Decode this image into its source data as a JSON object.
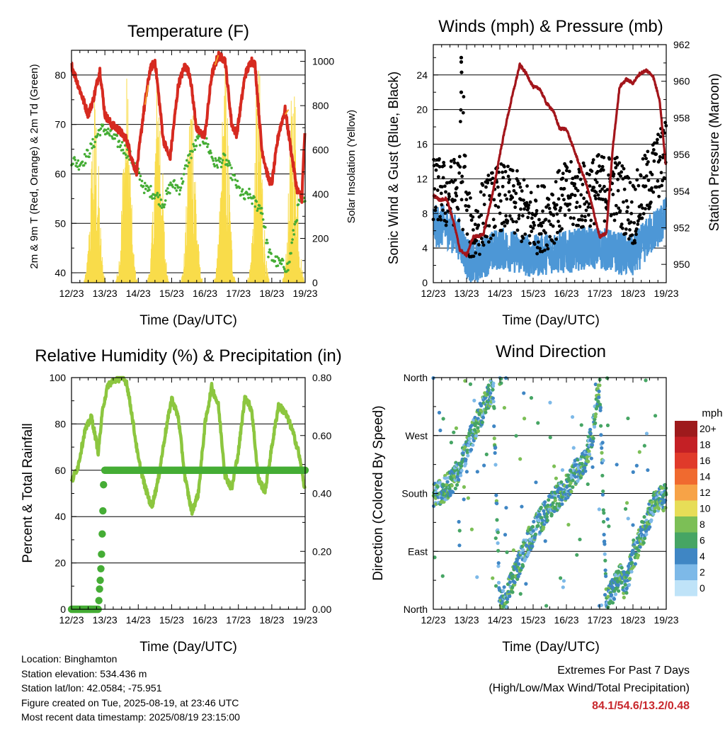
{
  "panels": {
    "temperature": {
      "title": "Temperature (F)",
      "xlabel": "Time (Day/UTC)",
      "ylabel_left": "2m & 9m T (Red, Orange) & 2m Td (Green)",
      "ylabel_right": "Solar Insolation (Yellow)"
    },
    "winds": {
      "title": "Winds (mph) & Pressure (mb)",
      "xlabel": "Time (Day/UTC)",
      "ylabel_left": "Sonic Wind & Gust (Blue, Black)",
      "ylabel_right": "Station Pressure (Maroon)"
    },
    "humidity": {
      "title": "Relative Humidity (%) & Precipitation (in)",
      "xlabel": "Time (Day/UTC)",
      "ylabel_left": "Percent & Total Rainfall"
    },
    "direction": {
      "title": "Wind Direction",
      "xlabel": "Time (Day/UTC)",
      "ylabel_left": "Direction (Colored By Speed)",
      "legend_title": "mph"
    }
  },
  "info": {
    "location": "Location: Binghamton",
    "elevation": "Station elevation: 534.436 m",
    "latlon": "Station lat/lon: 42.0584; -75.951",
    "created": "Figure created on Tue, 2025-08-19, at 23:46 UTC",
    "recent": "Most recent data timestamp: 2025/08/19 23:15:00"
  },
  "extremes": {
    "line1": "Extremes For Past 7 Days",
    "line2": "(High/Low/Max Wind/Total Precipitation)",
    "values": "84.1/54.6/13.2/0.48"
  },
  "chart_data": [
    {
      "type": "line",
      "title": "Temperature (F)",
      "xlabel": "Time (Day/UTC)",
      "ylabel": "2m & 9m T (Red, Orange) & 2m Td (Green)",
      "y2label": "Solar Insolation (Yellow)",
      "x_ticks": [
        "12/23",
        "13/23",
        "14/23",
        "15/23",
        "16/23",
        "17/23",
        "18/23",
        "19/23"
      ],
      "xlim": [
        12,
        19
      ],
      "ylim": [
        38,
        85
      ],
      "y_ticks": [
        40,
        50,
        60,
        70,
        80
      ],
      "y2lim": [
        0,
        1050
      ],
      "y2_ticks": [
        0,
        200,
        400,
        600,
        800,
        1000
      ],
      "grid": true,
      "series": [
        {
          "color": "#d62a20",
          "x": [
            12.0,
            12.15,
            12.3,
            12.5,
            12.65,
            12.85,
            13.0,
            13.2,
            13.4,
            13.65,
            13.85,
            13.95,
            14.15,
            14.35,
            14.5,
            14.75,
            14.85,
            14.95,
            15.2,
            15.4,
            15.55,
            15.75,
            15.9,
            16.0,
            16.2,
            16.4,
            16.6,
            16.8,
            16.95,
            17.2,
            17.4,
            17.5,
            17.7,
            17.9,
            18.0,
            18.2,
            18.4,
            18.55,
            18.75,
            18.9,
            19.0
          ],
          "y": [
            82,
            79,
            76,
            72,
            75,
            81,
            72,
            70,
            69,
            67,
            62,
            60.5,
            72,
            81,
            83,
            67,
            65,
            63,
            78,
            82,
            80,
            69,
            68,
            68,
            80,
            84,
            83,
            70,
            68,
            80,
            83,
            82,
            65,
            59,
            58,
            68,
            73,
            66,
            57,
            55,
            70
          ]
        },
        {
          "color": "#f59a23",
          "x": [
            14.2,
            14.3,
            14.4,
            16.3,
            16.4,
            18.4,
            18.5
          ],
          "y": [
            74,
            78,
            81,
            82,
            84,
            72,
            73
          ]
        },
        {
          "color": "#45ad35",
          "x": [
            12.0,
            12.2,
            12.4,
            12.65,
            12.85,
            13.0,
            13.3,
            13.6,
            13.8,
            14.0,
            14.2,
            14.5,
            14.75,
            15.0,
            15.25,
            15.5,
            15.8,
            16.0,
            16.3,
            16.6,
            16.8,
            17.0,
            17.2,
            17.3,
            17.5,
            17.7,
            17.9,
            18.0,
            18.2,
            18.5,
            18.7,
            18.85,
            19.0
          ],
          "y": [
            63,
            62,
            63,
            66,
            69,
            69,
            67,
            65,
            63,
            60,
            57,
            56,
            54,
            58,
            57,
            63,
            67,
            67,
            62,
            63,
            60,
            57,
            55,
            56,
            54,
            53,
            44,
            43,
            42,
            41,
            50,
            55,
            54
          ]
        },
        {
          "color": "#f9dc4a",
          "axis": "right",
          "note": "Solar insolation, daily peaks",
          "peak_x": [
            12.7,
            13.65,
            14.6,
            15.6,
            16.6,
            17.6,
            18.65
          ],
          "peak_y": [
            880,
            960,
            1040,
            1000,
            1010,
            1020,
            1000
          ]
        }
      ]
    },
    {
      "type": "scatter",
      "title": "Winds (mph) & Pressure (mb)",
      "xlabel": "Time (Day/UTC)",
      "ylabel": "Sonic Wind & Gust (Blue, Black)",
      "y2label": "Station Pressure (Maroon)",
      "x_ticks": [
        "12/23",
        "13/23",
        "14/23",
        "15/23",
        "16/23",
        "17/23",
        "18/23",
        "19/23"
      ],
      "xlim": [
        12,
        19
      ],
      "ylim": [
        0,
        27.5
      ],
      "y_ticks": [
        0,
        4,
        8,
        12,
        16,
        20,
        24
      ],
      "y2lim": [
        949.0,
        962.0
      ],
      "y2_ticks": [
        950,
        952,
        954,
        956,
        958,
        960,
        962
      ],
      "series": [
        {
          "name": "Sonic Wind",
          "color": "#4d97d6",
          "x": [
            12.0,
            12.4,
            12.8,
            13.0,
            13.2,
            13.5,
            14.0,
            14.5,
            15.0,
            15.5,
            16.0,
            16.5,
            17.0,
            17.5,
            18.0,
            18.5,
            19.0
          ],
          "y": [
            6.5,
            6.5,
            5.0,
            3.0,
            2.0,
            3.0,
            4.0,
            3.5,
            3.0,
            3.5,
            3.5,
            4.0,
            4.0,
            3.5,
            3.0,
            5.5,
            7.5
          ]
        },
        {
          "name": "Gust",
          "color": "#000000",
          "x": [
            12.0,
            12.4,
            12.8,
            12.85,
            13.0,
            13.2,
            13.5,
            14.0,
            14.5,
            15.0,
            15.5,
            16.0,
            16.5,
            17.0,
            17.5,
            18.0,
            18.5,
            19.0
          ],
          "y": [
            11,
            10,
            11,
            26,
            7,
            5.5,
            8,
            10,
            9,
            7,
            8,
            10,
            10,
            11,
            11,
            8,
            12,
            15
          ]
        },
        {
          "name": "Station Pressure",
          "color": "#a3151b",
          "axis": "right",
          "x": [
            12.0,
            12.2,
            12.4,
            12.6,
            12.8,
            13.0,
            13.2,
            13.5,
            13.8,
            14.0,
            14.2,
            14.4,
            14.6,
            14.8,
            15.0,
            15.2,
            15.4,
            15.6,
            15.8,
            16.0,
            16.2,
            16.4,
            16.6,
            16.8,
            17.0,
            17.2,
            17.4,
            17.6,
            17.8,
            18.0,
            18.2,
            18.4,
            18.6,
            18.8,
            19.0
          ],
          "y": [
            953.8,
            953.5,
            953.6,
            952.4,
            950.8,
            950.5,
            951.5,
            951.6,
            954.0,
            956.0,
            957.8,
            959.4,
            960.9,
            960.4,
            959.7,
            959.6,
            958.8,
            958.4,
            957.4,
            957.4,
            956.4,
            955.4,
            954.4,
            953.0,
            951.5,
            951.7,
            956.5,
            959.7,
            960.1,
            959.9,
            960.4,
            960.6,
            960.3,
            959.0,
            955.2
          ]
        }
      ]
    },
    {
      "type": "line",
      "title": "Relative Humidity (%) & Precipitation (in)",
      "xlabel": "Time (Day/UTC)",
      "ylabel": "Percent & Total Rainfall",
      "x_ticks": [
        "12/23",
        "13/23",
        "14/23",
        "15/23",
        "16/23",
        "17/23",
        "18/23",
        "19/23"
      ],
      "xlim": [
        12,
        19
      ],
      "ylim": [
        0,
        100
      ],
      "y_ticks": [
        0,
        20,
        40,
        60,
        80,
        100
      ],
      "y2lim": [
        0,
        0.8
      ],
      "y2_ticks": [
        "0.00",
        "0.20",
        "0.40",
        "0.60",
        "0.80"
      ],
      "series": [
        {
          "name": "Relative Humidity",
          "color": "#8cc63f",
          "x": [
            12.0,
            12.2,
            12.4,
            12.6,
            12.8,
            12.95,
            13.1,
            13.3,
            13.5,
            13.65,
            13.8,
            14.0,
            14.2,
            14.4,
            14.6,
            14.8,
            15.0,
            15.2,
            15.4,
            15.6,
            15.8,
            16.0,
            16.2,
            16.4,
            16.6,
            16.8,
            17.0,
            17.2,
            17.4,
            17.6,
            17.8,
            18.0,
            18.2,
            18.4,
            18.6,
            18.8,
            19.0
          ],
          "y": [
            55,
            62,
            77,
            83,
            68,
            88,
            97,
            99,
            100,
            98,
            85,
            65,
            53,
            44,
            56,
            75,
            91,
            83,
            57,
            42,
            50,
            80,
            96,
            88,
            58,
            52,
            68,
            92,
            86,
            56,
            51,
            70,
            88,
            85,
            78,
            68,
            51
          ]
        },
        {
          "name": "Total Precipitation",
          "color": "#45ad35",
          "axis": "right",
          "x": [
            12.0,
            12.5,
            12.8,
            12.82,
            12.84,
            12.86,
            12.88,
            12.9,
            12.92,
            12.94,
            12.96,
            13.0,
            14.0,
            15.0,
            16.0,
            17.0,
            18.0,
            19.0
          ],
          "y": [
            0.0,
            0.0,
            0.0,
            0.03,
            0.07,
            0.1,
            0.14,
            0.19,
            0.26,
            0.34,
            0.43,
            0.48,
            0.48,
            0.48,
            0.48,
            0.48,
            0.48,
            0.48
          ]
        }
      ]
    },
    {
      "type": "scatter",
      "title": "Wind Direction",
      "xlabel": "Time (Day/UTC)",
      "ylabel": "Direction (Colored By Speed)",
      "x_ticks": [
        "12/23",
        "13/23",
        "14/23",
        "15/23",
        "16/23",
        "17/23",
        "18/23",
        "19/23"
      ],
      "xlim": [
        12,
        19
      ],
      "ylim": [
        0,
        360
      ],
      "y_ticks": [
        "North",
        "East",
        "South",
        "West",
        "North"
      ],
      "legend": {
        "title": "mph",
        "labels": [
          "20+",
          "18",
          "16",
          "14",
          "12",
          "10",
          "8",
          "6",
          "4",
          "2",
          "0"
        ],
        "colors": [
          "#9e1a1c",
          "#c42025",
          "#e03a2a",
          "#f06a2f",
          "#f7a347",
          "#e7dd57",
          "#7cbf56",
          "#46a564",
          "#3f86c4",
          "#7db9e8",
          "#bfe3f8"
        ]
      },
      "series": [
        {
          "name": "Direction",
          "x": [
            12.0,
            12.3,
            12.6,
            12.8,
            13.0,
            13.4,
            13.8,
            14.0,
            14.2,
            14.5,
            14.8,
            15.0,
            15.5,
            16.0,
            16.3,
            16.6,
            16.8,
            17.0,
            17.2,
            17.4,
            17.6,
            17.8,
            18.0,
            18.3,
            18.6,
            18.8,
            19.0
          ],
          "y": [
            180,
            185,
            200,
            220,
            250,
            300,
            345,
            5,
            20,
            60,
            100,
            120,
            160,
            190,
            215,
            235,
            280,
            350,
            10,
            30,
            50,
            40,
            80,
            120,
            160,
            170,
            175
          ]
        }
      ]
    }
  ]
}
